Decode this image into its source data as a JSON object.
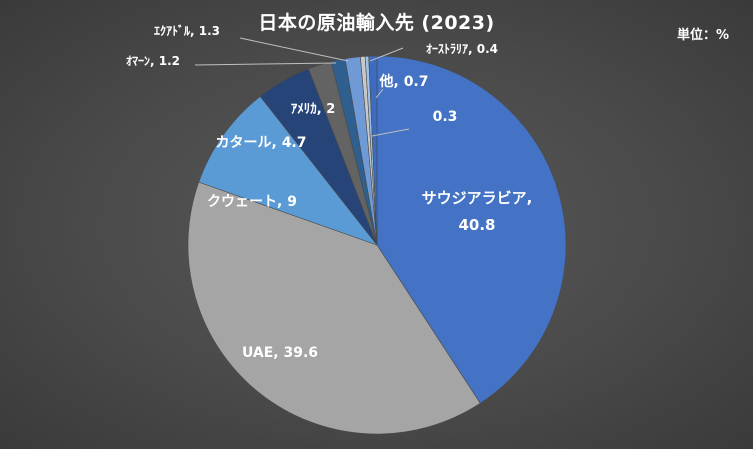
{
  "chart_data": {
    "type": "pie",
    "title": "日本の原油輸入先 (2023)",
    "unit_label": "単位：%",
    "slices": [
      {
        "label": "サウジアラビア",
        "value": 40.8,
        "color": "#4472c4"
      },
      {
        "label": "UAE",
        "value": 39.6,
        "color": "#a5a5a5"
      },
      {
        "label": "クウェート",
        "value": 9,
        "color": "#5b9bd5"
      },
      {
        "label": "カタール",
        "value": 4.7,
        "color": "#264478"
      },
      {
        "label": "ｱﾒﾘｶ",
        "value": 2,
        "color": "#636363"
      },
      {
        "label": "ｵﾏｰﾝ",
        "value": 1.2,
        "color": "#2e5f8f"
      },
      {
        "label": "ｴｸｱﾄﾞﾙ",
        "value": 1.3,
        "color": "#6f9ad6"
      },
      {
        "label": "ｵｰｽﾄﾗﾘｱ",
        "value": 0.4,
        "color": "#c8c8c8"
      },
      {
        "label": "",
        "value": 0.3,
        "color": "#9dc3e6"
      },
      {
        "label": "他",
        "value": 0.7,
        "color": "#3c6bbf"
      }
    ]
  }
}
